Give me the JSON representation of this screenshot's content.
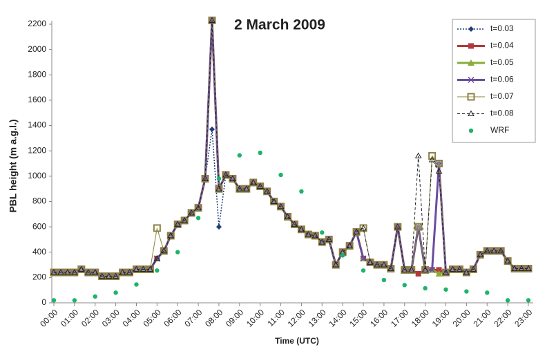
{
  "chart_data": {
    "type": "line",
    "title": "2 March 2009",
    "x_label": "Time (UTC)",
    "y_label": "PBL height (m a.g.l.)",
    "categories": [
      "00:00",
      null,
      null,
      "01:00",
      null,
      null,
      "02:00",
      null,
      null,
      "03:00",
      null,
      null,
      "04:00",
      null,
      null,
      "05:00",
      null,
      null,
      "06:00",
      null,
      null,
      "07:00",
      null,
      null,
      "08:00",
      null,
      null,
      "09:00",
      null,
      null,
      "10:00",
      null,
      null,
      "11:00",
      null,
      null,
      "12:00",
      null,
      null,
      "13:00",
      null,
      null,
      "14:00",
      null,
      null,
      "15:00",
      null,
      null,
      "16:00",
      null,
      null,
      "17:00",
      null,
      null,
      "18:00",
      null,
      null,
      "19:00",
      null,
      null,
      "20:00",
      null,
      null,
      "21:00",
      null,
      null,
      "22:00",
      null,
      null,
      "23:00"
    ],
    "ylim": [
      0,
      2200
    ],
    "yticks": [
      0,
      200,
      400,
      600,
      800,
      1000,
      1200,
      1400,
      1600,
      1800,
      2000,
      2200
    ],
    "grid": false,
    "legend": "upper right",
    "series": [
      {
        "name": "t=0.03",
        "color": "#1f3f7a",
        "marker": "diamond",
        "dash": "dotted",
        "width": 1.5,
        "values": [
          240,
          240,
          240,
          240,
          265,
          240,
          240,
          210,
          210,
          210,
          240,
          240,
          265,
          265,
          265,
          350,
          410,
          530,
          620,
          650,
          710,
          750,
          980,
          1370,
          600,
          1010,
          980,
          900,
          900,
          950,
          920,
          880,
          800,
          760,
          680,
          620,
          580,
          540,
          530,
          480,
          500,
          300,
          400,
          450,
          560,
          350,
          320,
          300,
          300,
          270,
          600,
          260,
          260,
          600,
          260,
          260,
          1100,
          240,
          265,
          265,
          240,
          265,
          380,
          410,
          410,
          410,
          330,
          270,
          270,
          270
        ]
      },
      {
        "name": "t=0.04",
        "color": "#b03a3a",
        "marker": "square",
        "dash": "solid",
        "width": 3,
        "values": [
          240,
          240,
          240,
          240,
          265,
          240,
          240,
          210,
          210,
          210,
          240,
          240,
          265,
          265,
          265,
          350,
          410,
          530,
          620,
          650,
          710,
          750,
          980,
          2230,
          900,
          1010,
          980,
          900,
          900,
          950,
          920,
          880,
          800,
          760,
          680,
          620,
          580,
          540,
          530,
          480,
          500,
          300,
          400,
          450,
          560,
          350,
          320,
          300,
          300,
          270,
          600,
          260,
          260,
          230,
          260,
          260,
          260,
          240,
          265,
          265,
          240,
          265,
          380,
          410,
          410,
          410,
          330,
          270,
          270,
          270
        ]
      },
      {
        "name": "t=0.05",
        "color": "#8aab3a",
        "marker": "triangle",
        "dash": "solid",
        "width": 3,
        "values": [
          240,
          240,
          240,
          240,
          265,
          240,
          240,
          210,
          210,
          210,
          240,
          240,
          265,
          265,
          265,
          350,
          410,
          530,
          620,
          650,
          710,
          750,
          980,
          2230,
          900,
          1010,
          980,
          900,
          900,
          950,
          920,
          880,
          800,
          760,
          680,
          620,
          580,
          540,
          530,
          480,
          500,
          300,
          400,
          450,
          560,
          350,
          320,
          300,
          300,
          270,
          600,
          260,
          260,
          600,
          260,
          260,
          230,
          240,
          265,
          265,
          240,
          265,
          380,
          410,
          410,
          410,
          330,
          270,
          270,
          270
        ]
      },
      {
        "name": "t=0.06",
        "color": "#6a4c9c",
        "marker": "cross",
        "dash": "solid",
        "width": 3,
        "values": [
          240,
          240,
          240,
          240,
          265,
          240,
          240,
          210,
          210,
          210,
          240,
          240,
          265,
          265,
          265,
          350,
          410,
          530,
          620,
          650,
          710,
          750,
          980,
          2230,
          900,
          1010,
          980,
          900,
          900,
          950,
          920,
          880,
          800,
          760,
          680,
          620,
          580,
          540,
          530,
          480,
          500,
          300,
          400,
          450,
          560,
          350,
          320,
          300,
          300,
          270,
          600,
          260,
          260,
          600,
          260,
          260,
          1100,
          240,
          265,
          265,
          240,
          265,
          380,
          410,
          410,
          410,
          330,
          270,
          270,
          270
        ]
      },
      {
        "name": "t=0.07",
        "color": "#8c8240",
        "marker": "hollow-square",
        "dash": "solid",
        "width": 1,
        "values": [
          240,
          240,
          240,
          240,
          265,
          240,
          240,
          210,
          210,
          210,
          240,
          240,
          265,
          265,
          265,
          590,
          410,
          530,
          620,
          650,
          710,
          750,
          980,
          2230,
          900,
          1010,
          980,
          900,
          900,
          950,
          920,
          880,
          800,
          760,
          680,
          620,
          580,
          540,
          530,
          480,
          500,
          300,
          400,
          450,
          560,
          590,
          320,
          300,
          300,
          270,
          600,
          260,
          260,
          600,
          260,
          1160,
          1100,
          240,
          265,
          265,
          240,
          265,
          380,
          410,
          410,
          410,
          330,
          270,
          270,
          270
        ]
      },
      {
        "name": "t=0.08",
        "color": "#222222",
        "marker": "hollow-triangle",
        "dash": "dashed",
        "width": 1,
        "values": [
          240,
          240,
          240,
          240,
          265,
          240,
          240,
          210,
          210,
          210,
          240,
          240,
          265,
          265,
          265,
          350,
          410,
          530,
          620,
          650,
          710,
          750,
          980,
          2230,
          900,
          1010,
          980,
          900,
          900,
          950,
          920,
          880,
          800,
          760,
          680,
          620,
          580,
          540,
          530,
          480,
          500,
          300,
          400,
          450,
          560,
          590,
          320,
          300,
          300,
          270,
          600,
          260,
          260,
          1160,
          260,
          1130,
          1040,
          240,
          265,
          265,
          240,
          265,
          380,
          410,
          410,
          410,
          330,
          270,
          270,
          270
        ]
      },
      {
        "name": "WRF",
        "color": "#1db36a",
        "marker": "dot",
        "dash": "none",
        "width": 0,
        "values": [
          20,
          null,
          null,
          20,
          null,
          null,
          50,
          null,
          null,
          80,
          null,
          null,
          145,
          null,
          null,
          255,
          null,
          null,
          400,
          null,
          null,
          670,
          null,
          null,
          980,
          null,
          null,
          1165,
          null,
          null,
          1185,
          null,
          null,
          1010,
          null,
          null,
          880,
          null,
          null,
          555,
          null,
          null,
          375,
          null,
          null,
          255,
          null,
          null,
          180,
          null,
          null,
          140,
          null,
          null,
          115,
          null,
          null,
          105,
          null,
          null,
          90,
          null,
          null,
          80,
          null,
          null,
          20,
          null,
          null,
          20
        ]
      }
    ]
  }
}
